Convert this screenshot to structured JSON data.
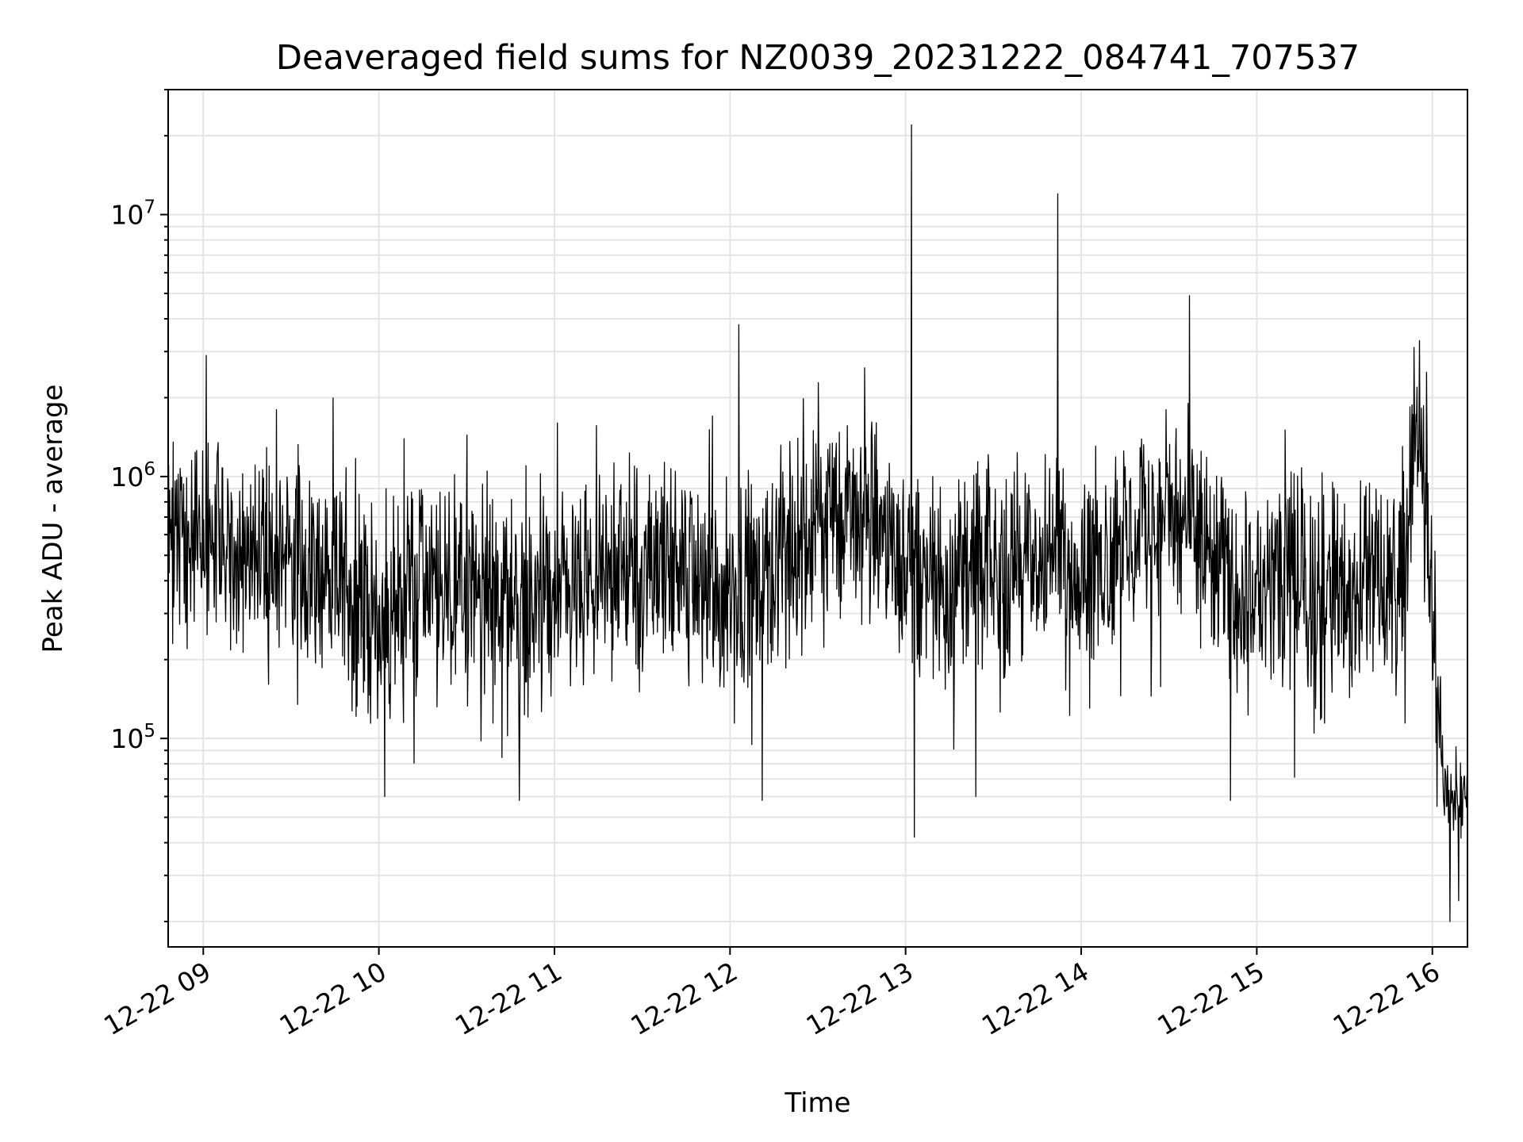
{
  "chart_data": {
    "type": "line",
    "title": "Deaveraged field sums for NZ0039_20231222_084741_707537",
    "xlabel": "Time",
    "ylabel": "Peak ADU - average",
    "yscale": "log",
    "grid": true,
    "line_color": "#000000",
    "grid_color": "#e5e5e5",
    "xlim": [
      "2023-12-22 08:48",
      "2023-12-22 16:12"
    ],
    "ylim": [
      16000,
      30000000
    ],
    "x_ticks": [
      "2023-12-22 09:00",
      "2023-12-22 10:00",
      "2023-12-22 11:00",
      "2023-12-22 12:00",
      "2023-12-22 13:00",
      "2023-12-22 14:00",
      "2023-12-22 15:00",
      "2023-12-22 16:00"
    ],
    "x_tick_labels": [
      "12-22 09",
      "12-22 10",
      "12-22 11",
      "12-22 12",
      "12-22 13",
      "12-22 14",
      "12-22 15",
      "12-22 16"
    ],
    "y_ticks": [
      100000,
      1000000,
      10000000
    ],
    "y_tick_labels": [
      {
        "base": "10",
        "exp": "5"
      },
      {
        "base": "10",
        "exp": "6"
      },
      {
        "base": "10",
        "exp": "7"
      }
    ],
    "series": [
      {
        "x": [
          "2023-12-22 08:48",
          "2023-12-22 09:00",
          "2023-12-22 09:12",
          "2023-12-22 09:24",
          "2023-12-22 09:36",
          "2023-12-22 09:48",
          "2023-12-22 10:00",
          "2023-12-22 10:12",
          "2023-12-22 10:24",
          "2023-12-22 10:36",
          "2023-12-22 10:48",
          "2023-12-22 11:00",
          "2023-12-22 11:12",
          "2023-12-22 11:24",
          "2023-12-22 11:36",
          "2023-12-22 11:48",
          "2023-12-22 12:00",
          "2023-12-22 12:12",
          "2023-12-22 12:24",
          "2023-12-22 12:36",
          "2023-12-22 12:48",
          "2023-12-22 13:00",
          "2023-12-22 13:12",
          "2023-12-22 13:24",
          "2023-12-22 13:36",
          "2023-12-22 13:48",
          "2023-12-22 14:00",
          "2023-12-22 14:12",
          "2023-12-22 14:24",
          "2023-12-22 14:36",
          "2023-12-22 14:48",
          "2023-12-22 15:00",
          "2023-12-22 15:12",
          "2023-12-22 15:24",
          "2023-12-22 15:36",
          "2023-12-22 15:48",
          "2023-12-22 15:56",
          "2023-12-22 16:00",
          "2023-12-22 16:04",
          "2023-12-22 16:12"
        ],
        "y": [
          500000,
          600000,
          450000,
          550000,
          450000,
          400000,
          280000,
          400000,
          350000,
          380000,
          320000,
          330000,
          380000,
          450000,
          480000,
          420000,
          380000,
          450000,
          550000,
          800000,
          700000,
          480000,
          420000,
          450000,
          450000,
          480000,
          470000,
          550000,
          650000,
          700000,
          420000,
          380000,
          380000,
          380000,
          420000,
          400000,
          1500000,
          350000,
          60000,
          60000
        ]
      }
    ],
    "peaks": [
      {
        "x": "2023-12-22 09:01",
        "y": 2900000
      },
      {
        "x": "2023-12-22 09:25",
        "y": 1800000
      },
      {
        "x": "2023-12-22 10:37",
        "y": 1050000
      },
      {
        "x": "2023-12-22 11:01",
        "y": 1600000
      },
      {
        "x": "2023-12-22 11:54",
        "y": 1700000
      },
      {
        "x": "2023-12-22 12:03",
        "y": 3800000
      },
      {
        "x": "2023-12-22 12:46",
        "y": 2600000
      },
      {
        "x": "2023-12-22 13:02",
        "y": 22000000
      },
      {
        "x": "2023-12-22 13:52",
        "y": 12000000
      },
      {
        "x": "2023-12-22 14:29",
        "y": 1800000
      },
      {
        "x": "2023-12-22 14:37",
        "y": 4900000
      },
      {
        "x": "2023-12-22 15:58",
        "y": 2500000
      }
    ],
    "dips": [
      {
        "x": "2023-12-22 10:02",
        "y": 60000
      },
      {
        "x": "2023-12-22 10:48",
        "y": 58000
      },
      {
        "x": "2023-12-22 12:11",
        "y": 58000
      },
      {
        "x": "2023-12-22 13:03",
        "y": 42000
      },
      {
        "x": "2023-12-22 13:24",
        "y": 60000
      },
      {
        "x": "2023-12-22 14:51",
        "y": 58000
      },
      {
        "x": "2023-12-22 16:06",
        "y": 20000
      },
      {
        "x": "2023-12-22 16:09",
        "y": 24000
      }
    ]
  }
}
